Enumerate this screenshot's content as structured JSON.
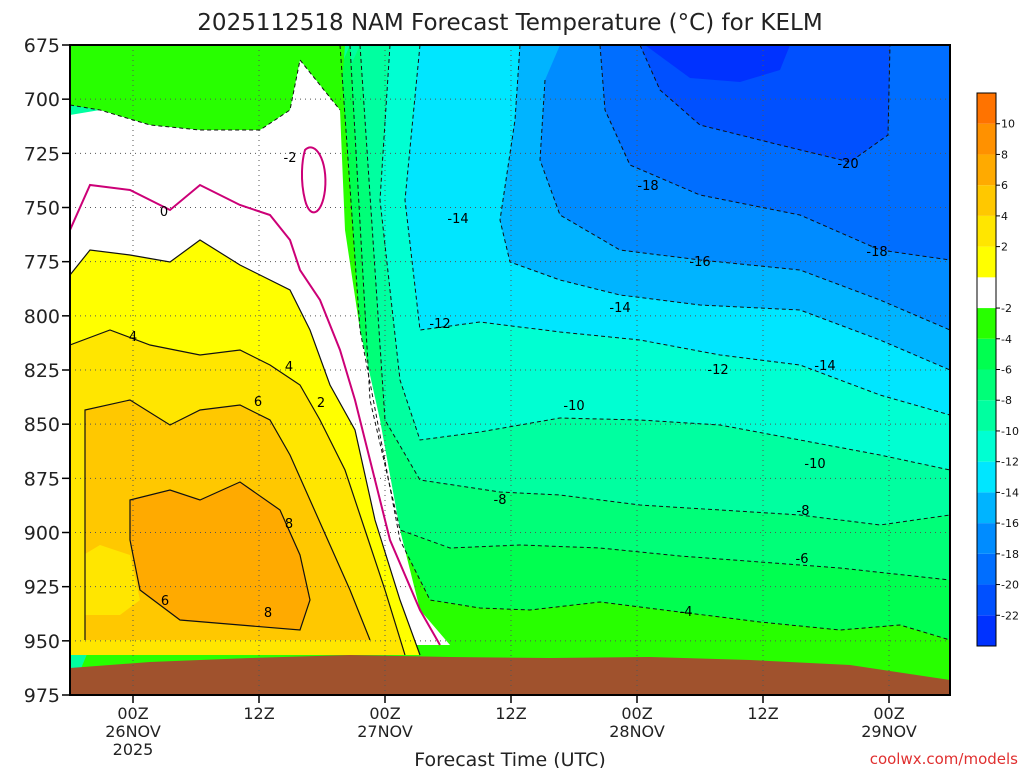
{
  "chart_data": {
    "type": "heatmap",
    "title": "2025112518 NAM Forecast Temperature (°C) for KELM",
    "xlabel": "Forecast Time (UTC)",
    "ylabel": "",
    "watermark": "coolwx.com/models",
    "y_axis": {
      "scale": "pressure",
      "reversed": true,
      "range": [
        675,
        975
      ],
      "ticks": [
        "675",
        "700",
        "725",
        "750",
        "775",
        "800",
        "825",
        "850",
        "875",
        "900",
        "925",
        "950",
        "975"
      ]
    },
    "x_axis": {
      "range": [
        "2025-11-25 18Z",
        "2025-11-29 03Z"
      ],
      "ticks": [
        {
          "label": "00Z",
          "sub1": "26NOV",
          "sub2": "2025"
        },
        {
          "label": "12Z",
          "sub1": "",
          "sub2": ""
        },
        {
          "label": "00Z",
          "sub1": "27NOV",
          "sub2": ""
        },
        {
          "label": "12Z",
          "sub1": "",
          "sub2": ""
        },
        {
          "label": "00Z",
          "sub1": "28NOV",
          "sub2": ""
        },
        {
          "label": "12Z",
          "sub1": "",
          "sub2": ""
        },
        {
          "label": "00Z",
          "sub1": "29NOV",
          "sub2": ""
        }
      ]
    },
    "grid": true,
    "colorbar": {
      "position": "right",
      "colors": [
        "#0032ff",
        "#0050ff",
        "#006eff",
        "#008cff",
        "#00b4ff",
        "#00e6ff",
        "#00ffd2",
        "#00ffa0",
        "#00ff78",
        "#00ff50",
        "#28ff00",
        "#ffffff",
        "#ffff00",
        "#ffe600",
        "#ffc800",
        "#ffaa00",
        "#ff9100",
        "#ff7300"
      ],
      "labels": [
        "-22",
        "-20",
        "-18",
        "-16",
        "-14",
        "-12",
        "-10",
        "-8",
        "-6",
        "-4",
        "-2",
        "2",
        "4",
        "6",
        "8",
        "10"
      ]
    },
    "contour_labels": [
      {
        "text": "-20"
      },
      {
        "text": "-18"
      },
      {
        "text": "-18"
      },
      {
        "text": "-16"
      },
      {
        "text": "-14"
      },
      {
        "text": "-14"
      },
      {
        "text": "-14"
      },
      {
        "text": "-12"
      },
      {
        "text": "-12"
      },
      {
        "text": "-10"
      },
      {
        "text": "-10"
      },
      {
        "text": "-8"
      },
      {
        "text": "-8"
      },
      {
        "text": "-6"
      },
      {
        "text": "-4"
      },
      {
        "text": "-2"
      },
      {
        "text": "0"
      },
      {
        "text": "2"
      },
      {
        "text": "4"
      },
      {
        "text": "4"
      },
      {
        "text": "6"
      },
      {
        "text": "6"
      },
      {
        "text": "8"
      },
      {
        "text": "8"
      }
    ],
    "ground_color": "#a0522d"
  }
}
